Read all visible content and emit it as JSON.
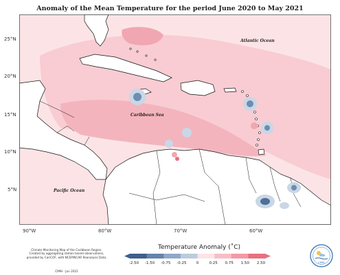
{
  "title": "Anomaly of the Mean Temperature for the period June 2020 to May 2021",
  "map": {
    "lat_labels": [
      "25°N",
      "20°N",
      "15°N",
      "10°N",
      "5°N"
    ],
    "lon_labels": [
      "90°W",
      "80°W",
      "70°W",
      "60°W"
    ],
    "regions": {
      "atlantic": "Atlantic Ocean",
      "caribbean": "Caribbean Sea",
      "pacific": "Pacific Ocean"
    },
    "colors": {
      "ocean_light": "#fce4e6",
      "anomaly_pos_weak": "#f8ccd2",
      "anomaly_pos_mid": "#f0a7b1",
      "anomaly_neg_weak": "#c9d7e6",
      "anomaly_neg_mid": "#8aa6c4",
      "anomaly_neg_strong": "#4e6f98"
    }
  },
  "legend": {
    "title": "Temperature Anomaly (˚C)",
    "ticks": [
      "-2.50",
      "-1.50",
      "-0.75",
      "-0.25",
      "0",
      "0.25",
      "0.75",
      "1.50",
      "2.50"
    ],
    "colors": [
      "#3d5f8c",
      "#6484ab",
      "#8fa8c6",
      "#bccbdd",
      "#e8eef5",
      "#fde3e6",
      "#f7bfc7",
      "#f29aa6",
      "#e8707f"
    ]
  },
  "credits": {
    "lines": [
      "Climate Monitoring Map of the Caribbean Region.",
      "Created by aggregating station based observations,",
      "provided by CariCOF, with NCEP/NCAR Reanalysis Data."
    ],
    "stamp": "CIMH - Jun 2021"
  },
  "logo": {
    "text": "CIMH"
  }
}
